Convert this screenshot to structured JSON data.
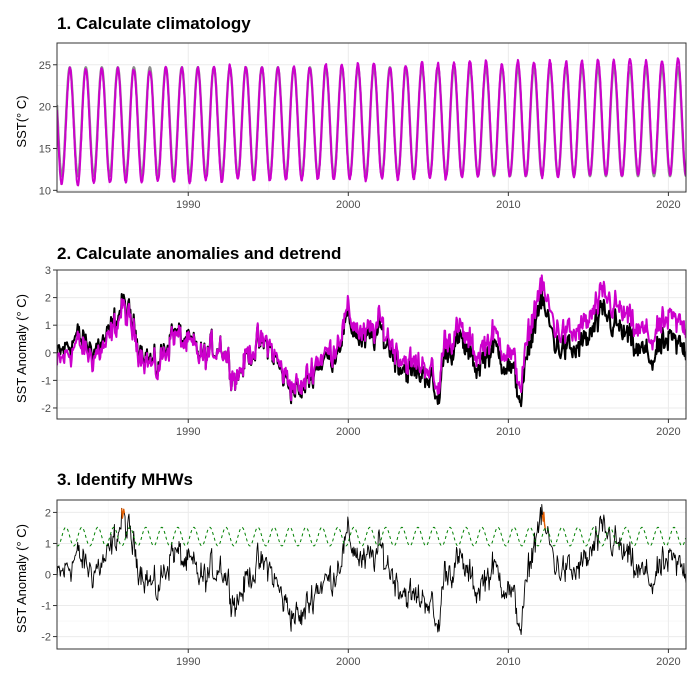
{
  "chart_data": [
    {
      "type": "line",
      "title": "1. Calculate climatology",
      "ylabel": "SST(° C)",
      "xlabel": "",
      "xlim": [
        1981.8,
        2021.1
      ],
      "ylim": [
        9.8,
        27.6
      ],
      "x_ticks": [
        1990,
        2000,
        2010,
        2020
      ],
      "y_ticks": [
        10,
        15,
        20,
        25
      ],
      "grid": true,
      "series": [
        {
          "role": "climatology",
          "color": "#8c8c8c",
          "style": "seasonal",
          "mean": 18.2,
          "amplitude": 6.5,
          "min": 11.8,
          "max": 24.8
        },
        {
          "role": "observed",
          "color": "#cc00cc",
          "style": "seasonal",
          "mean": 18.2,
          "amplitude": 6.8,
          "trend_per_decade": 0.3,
          "min": 10.5,
          "max": 27.2
        }
      ]
    },
    {
      "type": "line",
      "title": "2. Calculate anomalies and detrend",
      "ylabel": "SST Anomaly (° C)",
      "xlabel": "",
      "xlim": [
        1981.8,
        2021.1
      ],
      "ylim": [
        -2.4,
        3.0
      ],
      "x_ticks": [
        1990,
        2000,
        2010,
        2020
      ],
      "y_ticks": [
        -2,
        -1,
        0,
        1,
        2,
        3
      ],
      "grid": true,
      "series": [
        {
          "role": "detrended anomaly",
          "color": "#000000",
          "anchors": [
            [
              1981.8,
              -0.2
            ],
            [
              1983,
              0.6
            ],
            [
              1984,
              0.1
            ],
            [
              1985,
              0.5
            ],
            [
              1985.9,
              1.8
            ],
            [
              1987,
              0.3
            ],
            [
              1988,
              -0.6
            ],
            [
              1989,
              0.8
            ],
            [
              1990,
              0.3
            ],
            [
              1991,
              -0.2
            ],
            [
              1992,
              0.4
            ],
            [
              1993,
              -0.9
            ],
            [
              1994,
              0.2
            ],
            [
              1995,
              0.3
            ],
            [
              1996,
              -0.9
            ],
            [
              1997,
              -1.5
            ],
            [
              1998,
              -0.4
            ],
            [
              1999,
              -0.1
            ],
            [
              2000,
              1.2
            ],
            [
              2001,
              0.3
            ],
            [
              2002,
              0.8
            ],
            [
              2003,
              -0.2
            ],
            [
              2004,
              -0.8
            ],
            [
              2005,
              -0.7
            ],
            [
              2005.6,
              -1.9
            ],
            [
              2006,
              0.1
            ],
            [
              2007,
              0.4
            ],
            [
              2008,
              -0.5
            ],
            [
              2009,
              0.2
            ],
            [
              2010,
              -0.4
            ],
            [
              2010.8,
              -1.6
            ],
            [
              2011.5,
              0.8
            ],
            [
              2012,
              1.9
            ],
            [
              2013,
              0.3
            ],
            [
              2014,
              0.0
            ],
            [
              2015,
              0.5
            ],
            [
              2016,
              1.4
            ],
            [
              2017,
              0.8
            ],
            [
              2018,
              0.1
            ],
            [
              2019,
              -0.2
            ],
            [
              2020,
              0.4
            ],
            [
              2021.1,
              0.1
            ]
          ]
        },
        {
          "role": "raw anomaly",
          "color": "#cc00cc",
          "trend_total": 1.1,
          "trend_start": 1981.8,
          "trend_end": 2021.1
        }
      ]
    },
    {
      "type": "line",
      "title": "3. Identify MHWs",
      "ylabel": "SST Anomaly (° C)",
      "xlabel": "",
      "xlim": [
        1981.8,
        2021.1
      ],
      "ylim": [
        -2.4,
        2.4
      ],
      "x_ticks": [
        1990,
        2000,
        2010,
        2020
      ],
      "y_ticks": [
        -2,
        -1,
        0,
        1,
        2
      ],
      "grid": true,
      "series": [
        {
          "role": "detrended anomaly",
          "color": "#000000"
        },
        {
          "role": "MHW threshold",
          "color": "#008000",
          "dashed": true,
          "mean": 1.22,
          "amplitude": 0.3
        },
        {
          "role": "MHW events",
          "color": "#e05c00",
          "years": [
            1985.9,
            2012.2
          ]
        }
      ]
    }
  ]
}
